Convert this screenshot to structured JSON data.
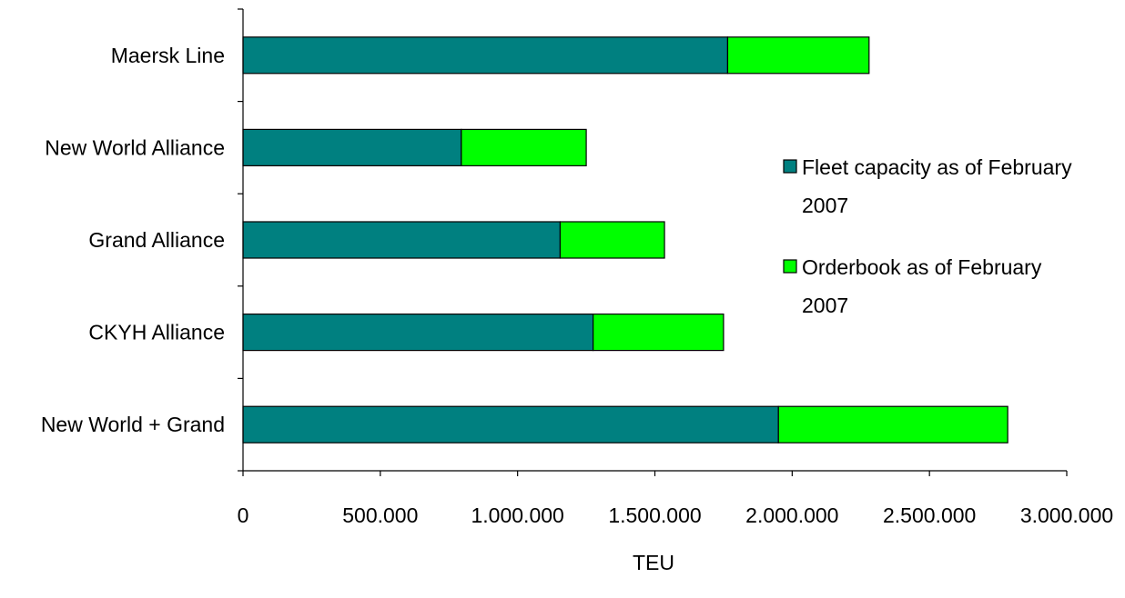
{
  "chart_data": {
    "type": "bar",
    "orientation": "horizontal",
    "stacked": true,
    "categories": [
      "Maersk Line",
      "New World Alliance",
      "Grand Alliance",
      "CKYH Alliance",
      "New World + Grand"
    ],
    "series": [
      {
        "name": "Fleet capacity as of February 2007",
        "values": [
          1765000,
          795000,
          1155000,
          1275000,
          1950000
        ],
        "color": "#008080"
      },
      {
        "name": "Orderbook as of February 2007",
        "values": [
          515000,
          455000,
          380000,
          475000,
          835000
        ],
        "color": "#00FF00"
      }
    ],
    "xlabel": "TEU",
    "ylabel": "",
    "xlim": [
      0,
      3000000
    ],
    "x_ticks": [
      0,
      500000,
      1000000,
      1500000,
      2000000,
      2500000,
      3000000
    ],
    "x_tick_labels": [
      "0",
      "500.000",
      "1.000.000",
      "1.500.000",
      "2.000.000",
      "2.500.000",
      "3.000.000"
    ],
    "grid": false,
    "legend": {
      "position": "right",
      "entries": [
        {
          "line1": "Fleet capacity as of February",
          "line2": "2007",
          "color": "#008080"
        },
        {
          "line1": "Orderbook as of February",
          "line2": "2007",
          "color": "#00FF00"
        }
      ]
    }
  }
}
